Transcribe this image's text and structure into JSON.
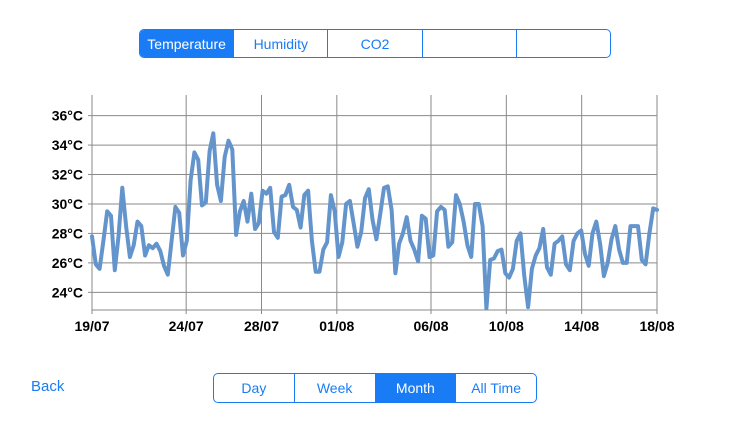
{
  "metric_tabs": [
    {
      "label": "Temperature",
      "selected": true
    },
    {
      "label": "Humidity",
      "selected": false
    },
    {
      "label": "CO2",
      "selected": false
    },
    {
      "label": "",
      "selected": false
    },
    {
      "label": "",
      "selected": false
    }
  ],
  "range_tabs": [
    {
      "label": "Day",
      "selected": false
    },
    {
      "label": "Week",
      "selected": false
    },
    {
      "label": "Month",
      "selected": true
    },
    {
      "label": "All Time",
      "selected": false
    }
  ],
  "back_label": "Back",
  "colors": {
    "accent": "#1a7cf5",
    "line": "#6494cc",
    "grid": "#8a8a8a"
  },
  "chart_data": {
    "type": "line",
    "title": "",
    "xlabel": "",
    "ylabel": "",
    "y_unit": "°C",
    "ylim": [
      22.8,
      37.4
    ],
    "y_ticks": [
      24,
      26,
      28,
      30,
      32,
      34,
      36
    ],
    "y_tick_labels": [
      "24°C",
      "26°C",
      "28°C",
      "30°C",
      "32°C",
      "34°C",
      "36°C"
    ],
    "x_ticks": [
      {
        "label": "19/07",
        "t": 0
      },
      {
        "label": "24/07",
        "t": 5
      },
      {
        "label": "28/07",
        "t": 9
      },
      {
        "label": "01/08",
        "t": 13
      },
      {
        "label": "06/08",
        "t": 18
      },
      {
        "label": "10/08",
        "t": 22
      },
      {
        "label": "14/08",
        "t": 26
      },
      {
        "label": "18/08",
        "t": 30
      }
    ],
    "series": [
      {
        "name": "Temperature",
        "t_start": 0,
        "t_end": 30,
        "values": [
          27.8,
          25.9,
          25.6,
          27.5,
          29.5,
          29.2,
          25.5,
          27.8,
          31.1,
          28.5,
          26.4,
          27.2,
          28.8,
          28.5,
          26.5,
          27.2,
          27.0,
          27.3,
          26.8,
          25.8,
          25.2,
          27.5,
          29.8,
          29.4,
          26.5,
          27.5,
          31.6,
          33.5,
          33.0,
          29.9,
          30.1,
          33.6,
          34.8,
          31.3,
          30.2,
          33.2,
          34.3,
          33.7,
          27.9,
          29.5,
          30.2,
          28.8,
          30.7,
          28.3,
          28.7,
          30.9,
          30.7,
          31.1,
          28.1,
          27.7,
          30.5,
          30.6,
          31.3,
          29.8,
          29.6,
          28.4,
          30.6,
          30.9,
          27.5,
          25.4,
          25.4,
          26.9,
          27.4,
          30.6,
          29.5,
          26.4,
          27.4,
          30.0,
          30.2,
          28.7,
          27.1,
          28.1,
          30.4,
          31.0,
          28.9,
          27.6,
          29.3,
          31.1,
          31.2,
          29.6,
          25.3,
          27.3,
          28.0,
          29.1,
          27.5,
          26.9,
          26.1,
          29.2,
          29.0,
          26.4,
          26.5,
          29.5,
          29.8,
          29.6,
          27.1,
          27.4,
          30.6,
          30.0,
          28.8,
          27.2,
          26.4,
          30.0,
          30.0,
          28.5,
          22.9,
          26.2,
          26.3,
          26.8,
          26.9,
          25.3,
          25.0,
          25.6,
          27.5,
          28.0,
          25.1,
          23.0,
          25.6,
          26.5,
          27.0,
          28.3,
          25.7,
          25.2,
          27.3,
          27.5,
          27.8,
          25.9,
          25.5,
          27.5,
          28.0,
          28.2,
          26.6,
          25.8,
          28.0,
          28.8,
          27.3,
          25.1,
          26.0,
          27.6,
          28.5,
          26.9,
          26.0,
          26.0,
          28.5,
          28.5,
          28.5,
          26.2,
          25.9,
          28.0,
          29.7,
          29.6
        ]
      }
    ]
  }
}
